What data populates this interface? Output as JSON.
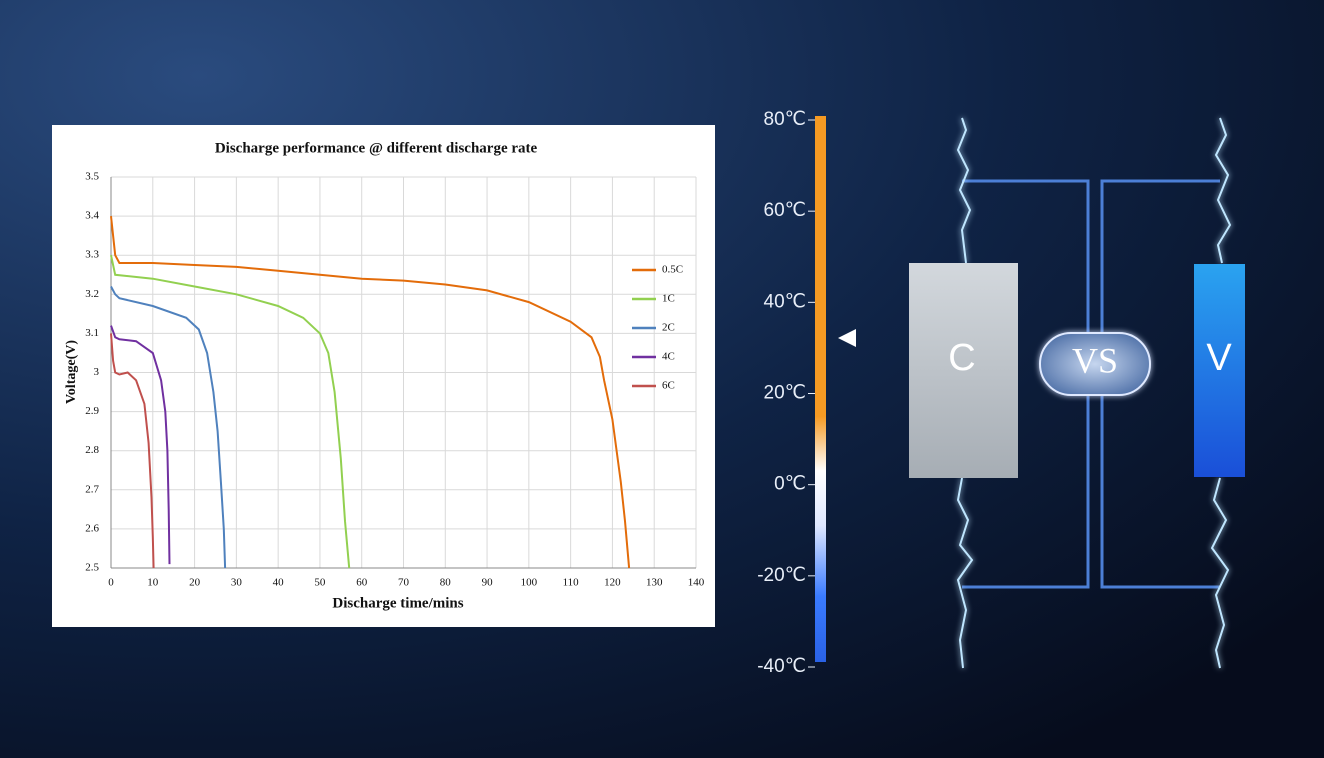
{
  "chart_data": {
    "type": "line",
    "title": "Discharge performance @ different discharge rate",
    "x_label": "Discharge time/mins",
    "y_label": "Voltage(V)",
    "xlim": [
      0,
      140
    ],
    "xticks": [
      0,
      10,
      20,
      30,
      40,
      50,
      60,
      70,
      80,
      90,
      100,
      110,
      120,
      130,
      140
    ],
    "ylim": [
      2.5,
      3.5
    ],
    "yticks": [
      2.5,
      2.6,
      2.7,
      2.8,
      2.9,
      3,
      3.1,
      3.2,
      3.3,
      3.4,
      3.5
    ],
    "grid": true,
    "legend": "right",
    "series": [
      {
        "name": "0.5C",
        "color": "#e36c0a",
        "x": [
          0,
          1,
          2,
          10,
          20,
          30,
          40,
          50,
          60,
          70,
          80,
          90,
          100,
          110,
          115,
          117,
          118,
          120,
          122,
          123,
          124
        ],
        "values": [
          3.4,
          3.3,
          3.28,
          3.28,
          3.275,
          3.27,
          3.26,
          3.25,
          3.24,
          3.235,
          3.225,
          3.21,
          3.18,
          3.13,
          3.09,
          3.04,
          2.98,
          2.88,
          2.72,
          2.62,
          2.5
        ]
      },
      {
        "name": "1C",
        "color": "#92d050",
        "x": [
          0,
          1,
          10,
          20,
          30,
          40,
          46,
          50,
          52,
          53.5,
          55,
          56,
          57
        ],
        "values": [
          3.3,
          3.25,
          3.24,
          3.22,
          3.2,
          3.17,
          3.14,
          3.1,
          3.05,
          2.95,
          2.78,
          2.62,
          2.5
        ]
      },
      {
        "name": "2C",
        "color": "#4f81bd",
        "x": [
          0,
          1,
          2,
          10,
          18,
          21,
          23,
          24.5,
          25.5,
          26.3,
          27,
          27.3
        ],
        "values": [
          3.22,
          3.2,
          3.19,
          3.17,
          3.14,
          3.11,
          3.05,
          2.95,
          2.85,
          2.72,
          2.6,
          2.5
        ]
      },
      {
        "name": "4C",
        "color": "#7030a0",
        "x": [
          0,
          1,
          2,
          6,
          10,
          12,
          13,
          13.5,
          13.8,
          14
        ],
        "values": [
          3.12,
          3.09,
          3.085,
          3.08,
          3.05,
          2.98,
          2.9,
          2.8,
          2.65,
          2.51
        ]
      },
      {
        "name": "6C",
        "color": "#c0504d",
        "x": [
          0,
          0.5,
          1,
          2,
          4,
          6,
          8,
          9,
          9.7,
          10,
          10.2
        ],
        "values": [
          3.1,
          3.03,
          3,
          2.995,
          3,
          2.98,
          2.92,
          2.82,
          2.68,
          2.58,
          2.5
        ]
      }
    ]
  },
  "diagram": {
    "scale_labels": [
      "80℃",
      "60℃",
      "40℃",
      "20℃",
      "0℃",
      "-20℃",
      "-40℃"
    ],
    "left_label": "C",
    "vs_label": "VS",
    "right_label": "V"
  }
}
